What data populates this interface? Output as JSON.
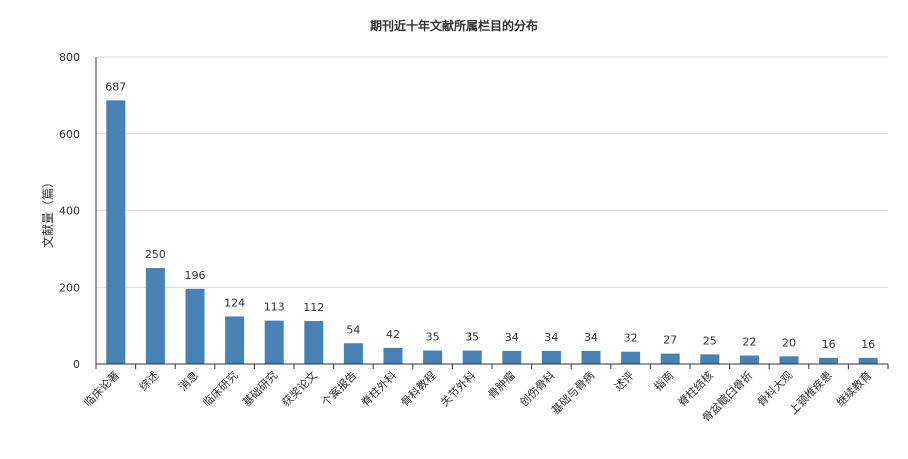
{
  "chart_data": {
    "type": "bar",
    "title": "期刊近十年文献所属栏目的分布",
    "xlabel": "",
    "ylabel": "文献量（篇）",
    "ylim": [
      0,
      800
    ],
    "yticks": [
      "0",
      "200",
      "400",
      "600",
      "800"
    ],
    "grid": true,
    "legend": "none",
    "bar_color": "#4682B4",
    "categories": [
      "临床论著",
      "综述",
      "消息",
      "临床研究",
      "基础研究",
      "获奖论文",
      "个案报告",
      "脊柱外科",
      "骨科教程",
      "关节外科",
      "骨肿瘤",
      "创伤骨科",
      "基础与骨病",
      "述评",
      "指南",
      "脊柱结核",
      "骨盆髋臼骨折",
      "骨科大观",
      "上颈椎疾患",
      "继续教育"
    ],
    "values": [
      687,
      250,
      196,
      124,
      113,
      112,
      54,
      42,
      35,
      35,
      34,
      34,
      34,
      32,
      27,
      25,
      22,
      20,
      16,
      16
    ]
  }
}
